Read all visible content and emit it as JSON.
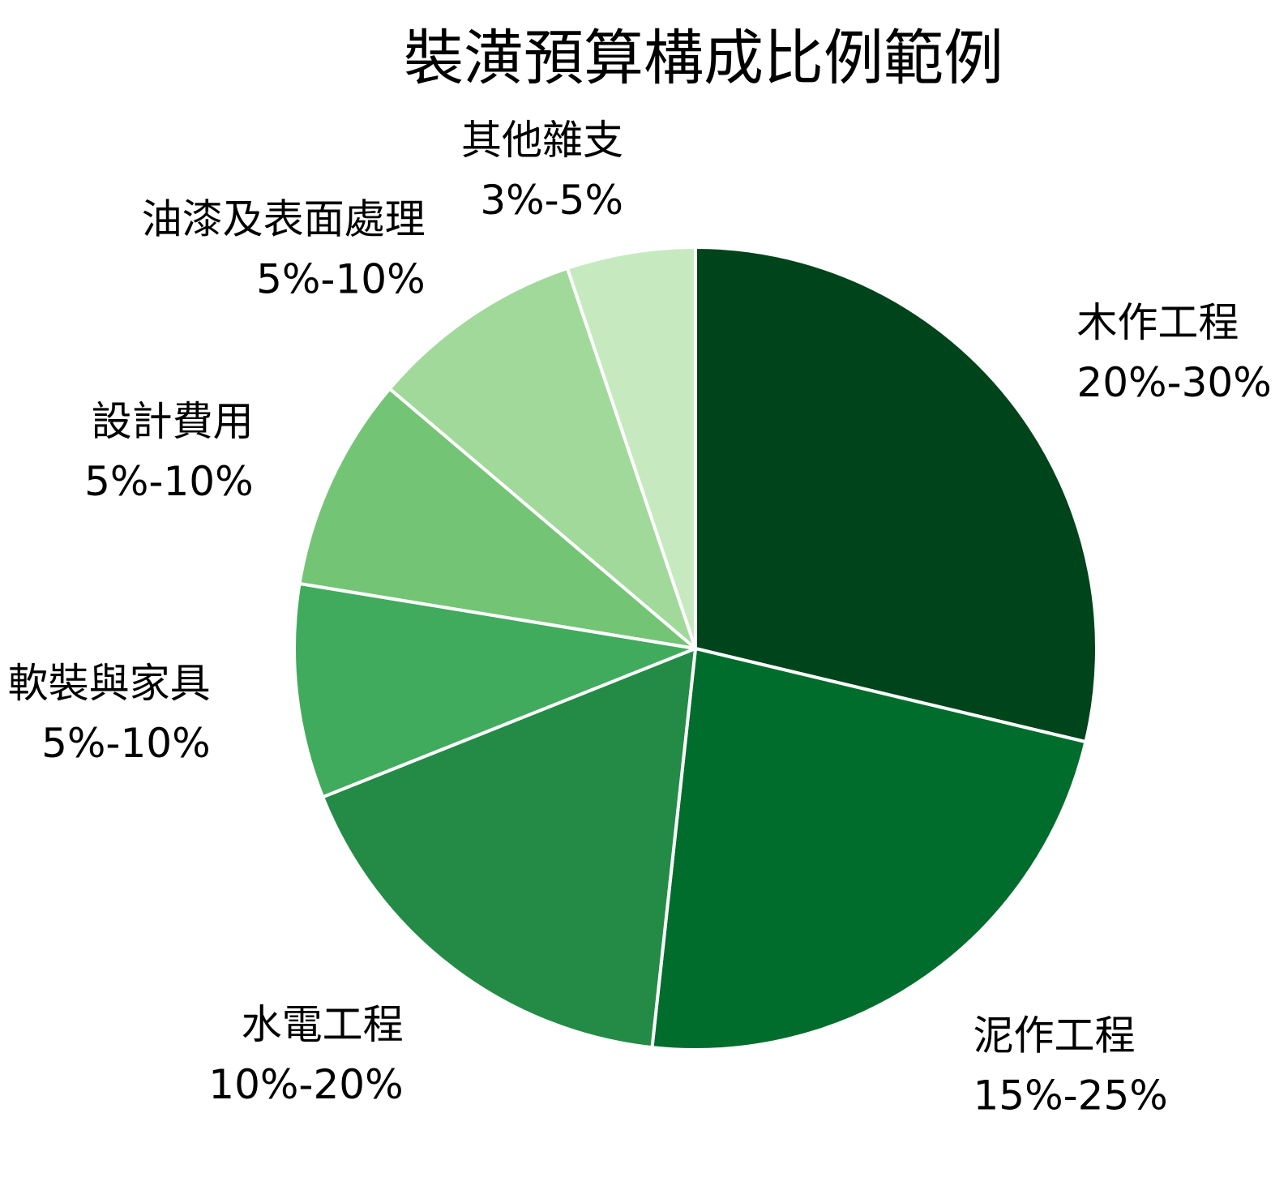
{
  "chart_data": {
    "type": "pie",
    "title": "裝潢預算構成比例範例",
    "slices": [
      {
        "name": "木作工程",
        "range": "20%-30%",
        "value": 25,
        "color": "#00441b"
      },
      {
        "name": "泥作工程",
        "range": "15%-25%",
        "value": 20,
        "color": "#006d2c"
      },
      {
        "name": "水電工程",
        "range": "10%-20%",
        "value": 15,
        "color": "#238b45"
      },
      {
        "name": "軟裝與家具",
        "range": "5%-10%",
        "value": 7.5,
        "color": "#41ab5d"
      },
      {
        "name": "設計費用",
        "range": "5%-10%",
        "value": 7.5,
        "color": "#74c476"
      },
      {
        "name": "油漆及表面處理",
        "range": "5%-10%",
        "value": 7.5,
        "color": "#a1d99b"
      },
      {
        "name": "其他雜支",
        "range": "3%-5%",
        "value": 4.5,
        "color": "#c7e9c0"
      }
    ],
    "start": "12 o'clock",
    "direction": "clockwise",
    "slice_border_color": "#ffffff",
    "legend": "none"
  }
}
